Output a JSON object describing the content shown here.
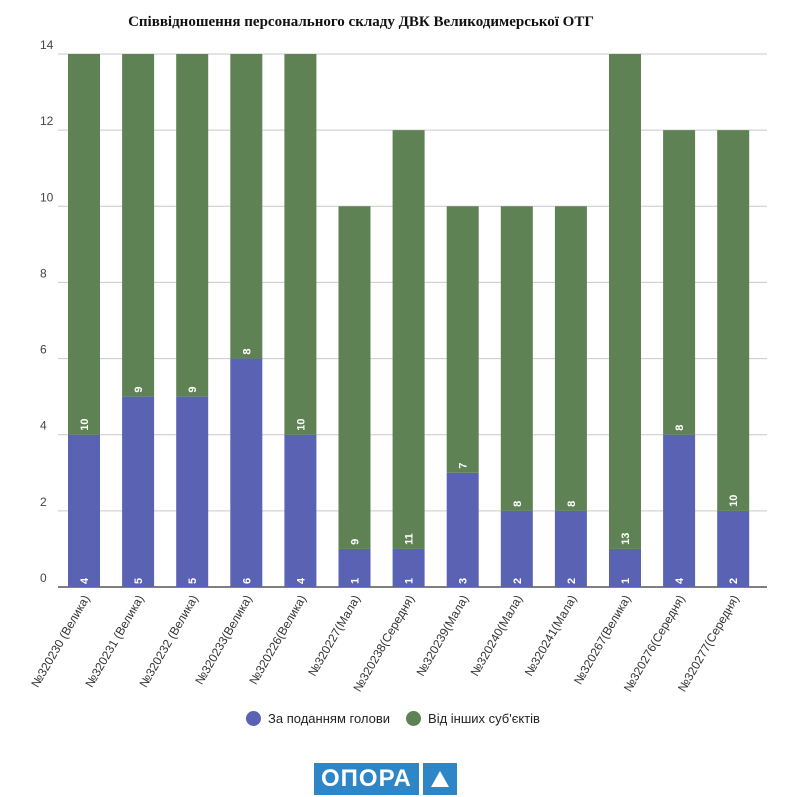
{
  "chart_data": {
    "type": "bar",
    "stacked": true,
    "title": "Співвідношення персонального складу ДВК Великодимерської ОТГ",
    "categories": [
      "№320230 (Велика)",
      "№320231 (Велика)",
      "№320232 (Велика)",
      "№320233(Велика)",
      "№320226(Велика)",
      "№320227(Мала)",
      "№320238(Середня)",
      "№320239(Мала)",
      "№320240(Мала)",
      "№320241(Мала)",
      "№320267(Велика)",
      "№320276(Середня)",
      "№320277(Середня)"
    ],
    "series": [
      {
        "name": "За поданням голови",
        "color": "#5a62b3",
        "values": [
          4,
          5,
          5,
          6,
          4,
          1,
          1,
          3,
          2,
          2,
          1,
          4,
          2
        ]
      },
      {
        "name": "Від інших суб'єктів",
        "color": "#5e8253",
        "values": [
          10,
          9,
          9,
          8,
          10,
          9,
          11,
          7,
          8,
          8,
          13,
          8,
          10
        ]
      }
    ],
    "ylim": [
      0,
      14
    ],
    "yticks": [
      "0",
      "2",
      "4",
      "6",
      "8",
      "10",
      "12",
      "14"
    ],
    "grid": true,
    "legend_position": "bottom"
  },
  "logo": {
    "text": "ОПОРА",
    "color": "#2f86c7"
  }
}
